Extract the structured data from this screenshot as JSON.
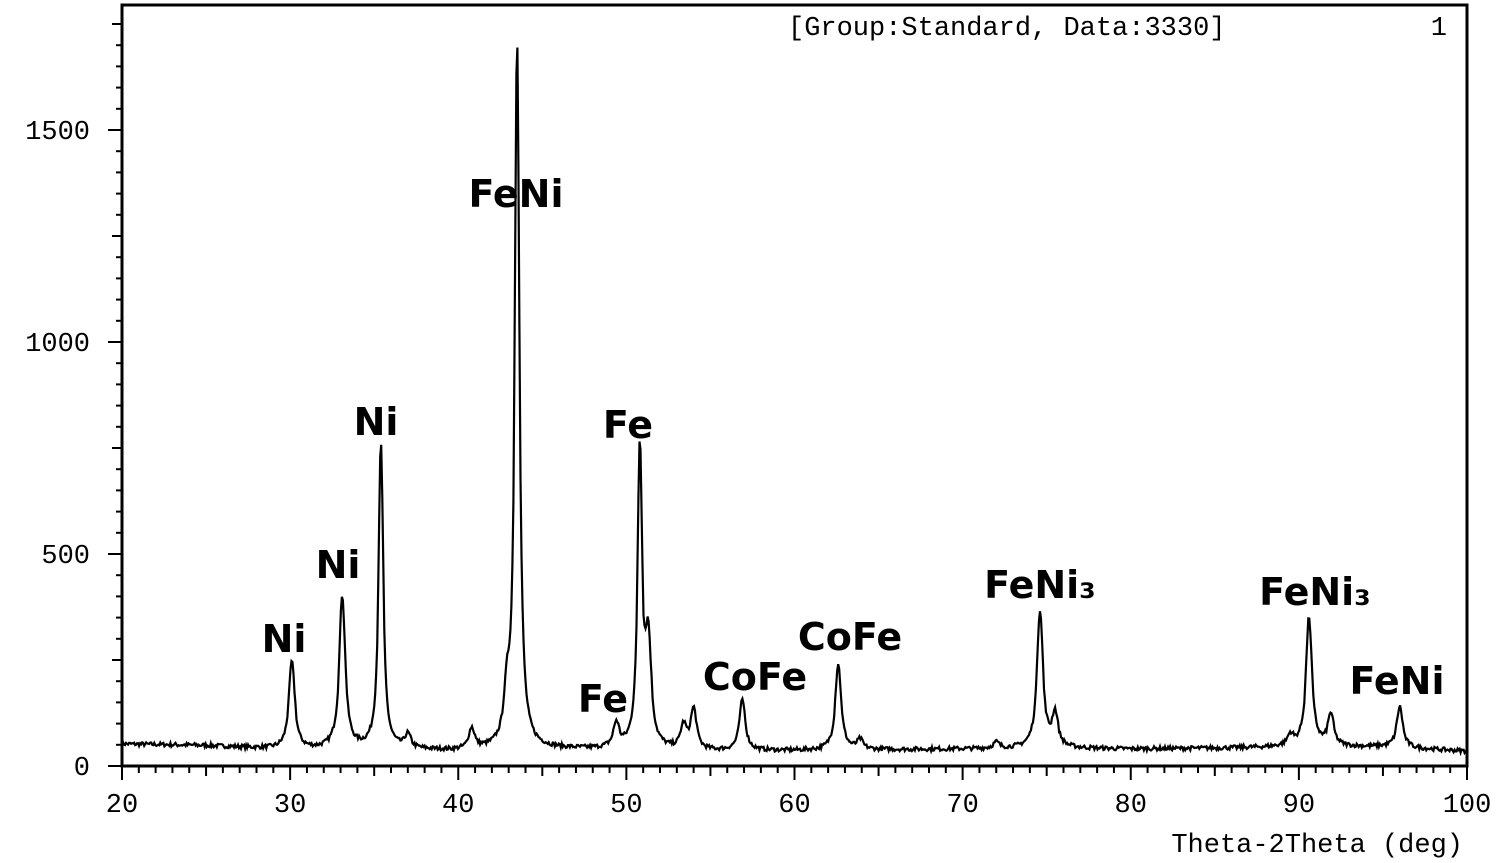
{
  "chart_data": {
    "type": "line",
    "header": "[Group:Standard, Data:3330]",
    "header_index": "1",
    "xlabel": "Theta-2Theta (deg)",
    "ylabel": "",
    "xlim": [
      20,
      100
    ],
    "ylim": [
      0,
      1800
    ],
    "xticks": [
      20,
      30,
      40,
      50,
      60,
      70,
      80,
      90,
      100
    ],
    "yticks": [
      0,
      500,
      1000,
      1500
    ],
    "grid": false,
    "color": "#000000",
    "baseline": [
      [
        20,
        52
      ],
      [
        25,
        48
      ],
      [
        30,
        38
      ],
      [
        35,
        40
      ],
      [
        40,
        35
      ],
      [
        45,
        40
      ],
      [
        50,
        38
      ],
      [
        55,
        35
      ],
      [
        60,
        36
      ],
      [
        65,
        38
      ],
      [
        70,
        40
      ],
      [
        75,
        42
      ],
      [
        80,
        40
      ],
      [
        85,
        42
      ],
      [
        90,
        45
      ],
      [
        95,
        45
      ],
      [
        100,
        35
      ]
    ],
    "peaks": [
      {
        "x": 30.1,
        "y": 245
      },
      {
        "x": 33.1,
        "y": 400
      },
      {
        "x": 35.4,
        "y": 760
      },
      {
        "x": 37.0,
        "y": 70
      },
      {
        "x": 40.8,
        "y": 85
      },
      {
        "x": 42.9,
        "y": 140
      },
      {
        "x": 43.5,
        "y": 1710
      },
      {
        "x": 49.4,
        "y": 95
      },
      {
        "x": 50.8,
        "y": 740
      },
      {
        "x": 51.3,
        "y": 280
      },
      {
        "x": 53.4,
        "y": 90
      },
      {
        "x": 54.0,
        "y": 130
      },
      {
        "x": 56.9,
        "y": 155
      },
      {
        "x": 62.6,
        "y": 240
      },
      {
        "x": 63.9,
        "y": 60
      },
      {
        "x": 72.0,
        "y": 55
      },
      {
        "x": 74.6,
        "y": 365
      },
      {
        "x": 75.5,
        "y": 120
      },
      {
        "x": 89.5,
        "y": 70
      },
      {
        "x": 90.6,
        "y": 350
      },
      {
        "x": 91.9,
        "y": 120
      },
      {
        "x": 96.0,
        "y": 140
      }
    ],
    "annotations": [
      {
        "text": "Ni",
        "x": 30.1
      },
      {
        "text": "Ni",
        "x": 33.1
      },
      {
        "text": "Ni",
        "x": 35.4
      },
      {
        "text": "FeNi",
        "x": 43.5
      },
      {
        "text": "Fe",
        "x": 50.8
      },
      {
        "text": "Fe",
        "x": 49.4
      },
      {
        "text": "CoFe",
        "x": 56.9
      },
      {
        "text": "CoFe",
        "x": 62.6
      },
      {
        "text": "FeNi₃",
        "x": 74.6
      },
      {
        "text": "FeNi₃",
        "x": 90.6
      },
      {
        "text": "FeNi",
        "x": 96.0
      }
    ]
  }
}
